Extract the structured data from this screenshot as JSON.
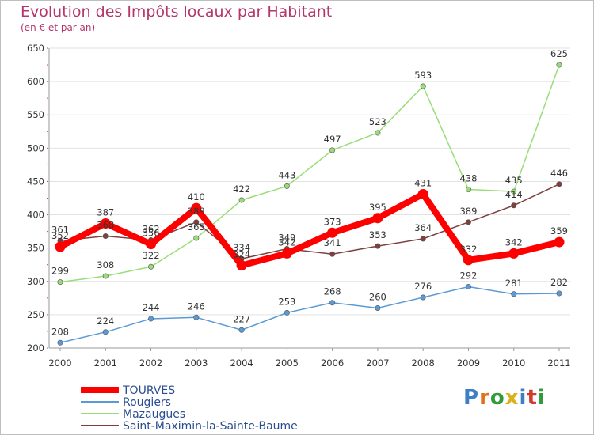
{
  "title": "Evolution des Impôts locaux par Habitant",
  "subtitle": "(en € et par an)",
  "logo": {
    "text": "Proxiti",
    "letter_colors": [
      "#3c7fc4",
      "#e0701b",
      "#2f9b3a",
      "#d9b31a",
      "#3c7fc4",
      "#d23a2b",
      "#2f9b3a"
    ]
  },
  "chart_data": {
    "type": "line",
    "title": "Evolution des Impôts locaux par Habitant",
    "subtitle": "(en € et par an)",
    "xlabel": "",
    "ylabel": "",
    "x": [
      "2000",
      "2001",
      "2002",
      "2003",
      "2004",
      "2005",
      "2006",
      "2007",
      "2008",
      "2009",
      "2010",
      "2011"
    ],
    "ylim": [
      200,
      650
    ],
    "yticks": [
      200,
      250,
      300,
      350,
      400,
      450,
      500,
      550,
      600,
      650
    ],
    "grid": "horizontal",
    "legend_position": "bottom-left",
    "series": [
      {
        "name": "TOURVES",
        "color": "#ff0000",
        "values": [
          352,
          387,
          356,
          410,
          324,
          342,
          373,
          395,
          431,
          332,
          342,
          359
        ],
        "labels": [
          "352",
          "387",
          "356",
          "410",
          "324",
          "342",
          "373",
          "395",
          "431",
          "332",
          "342",
          "359"
        ]
      },
      {
        "name": "Rougiers",
        "color": "#5b9bd5",
        "values": [
          208,
          224,
          244,
          246,
          227,
          253,
          268,
          260,
          276,
          292,
          281,
          282
        ],
        "labels": [
          "208",
          "224",
          "244",
          "246",
          "227",
          "253",
          "268",
          "260",
          "276",
          "292",
          "281",
          "282"
        ]
      },
      {
        "name": "Mazaugues",
        "color": "#99dd77",
        "values": [
          299,
          308,
          322,
          365,
          422,
          443,
          497,
          523,
          593,
          438,
          435,
          625
        ],
        "labels": [
          "299",
          "308",
          "322",
          "365",
          "422",
          "443",
          "497",
          "523",
          "593",
          "438",
          "435",
          "625"
        ]
      },
      {
        "name": "Saint-Maximin-la-Sainte-Baume",
        "color": "#7f3f3f",
        "values": [
          361,
          368,
          362,
          389,
          334,
          349,
          341,
          353,
          364,
          389,
          414,
          446
        ],
        "labels": [
          "361",
          "368",
          "362",
          "389",
          "334",
          "349",
          "341",
          "353",
          "364",
          "389",
          "414",
          "446"
        ]
      }
    ]
  }
}
